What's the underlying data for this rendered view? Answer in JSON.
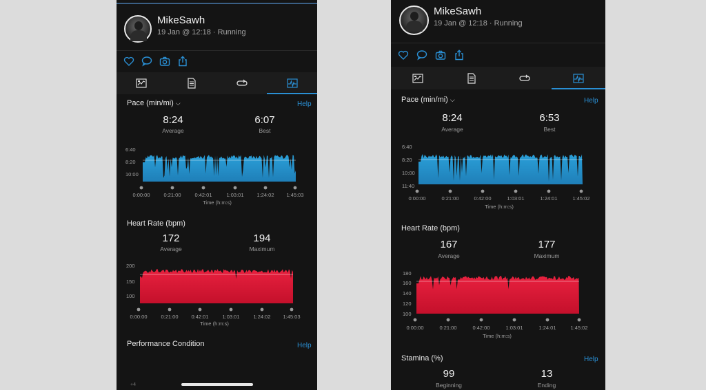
{
  "left": {
    "user": {
      "name": "MikeSawh",
      "subtitle": "19 Jan @ 12:18 · Running"
    },
    "pace": {
      "title": "Pace (min/mi)",
      "help": "Help",
      "average": "8:24",
      "average_label": "Average",
      "best": "6:07",
      "best_label": "Best",
      "y_ticks": [
        "6:40",
        "8:20",
        "10:00"
      ],
      "x_ticks": [
        "0:00:00",
        "0:21:00",
        "0:42:01",
        "1:03:01",
        "1:24:02",
        "1:45:03"
      ],
      "x_label": "Time (h:m:s)"
    },
    "heart": {
      "title": "Heart Rate (bpm)",
      "average": "172",
      "average_label": "Average",
      "max": "194",
      "max_label": "Maximum",
      "y_ticks": [
        "200",
        "150",
        "100"
      ],
      "x_ticks": [
        "0:00:00",
        "0:21:00",
        "0:42:01",
        "1:03:01",
        "1:24:02",
        "1:45:03"
      ],
      "x_label": "Time (h:m:s)"
    },
    "performance": {
      "title": "Performance Condition",
      "help": "Help",
      "y_tick": "+4"
    }
  },
  "right": {
    "user": {
      "name": "MikeSawh",
      "subtitle": "19 Jan @ 12:18 · Running"
    },
    "pace": {
      "title": "Pace (min/mi)",
      "help": "Help",
      "average": "8:24",
      "average_label": "Average",
      "best": "6:53",
      "best_label": "Best",
      "y_ticks": [
        "6:40",
        "8:20",
        "10:00",
        "11:40"
      ],
      "x_ticks": [
        "0:00:00",
        "0:21:00",
        "0:42:00",
        "1:03:01",
        "1:24:01",
        "1:45:02"
      ],
      "x_label": "Time (h:m:s)"
    },
    "heart": {
      "title": "Heart Rate (bpm)",
      "average": "167",
      "average_label": "Average",
      "max": "177",
      "max_label": "Maximum",
      "y_ticks": [
        "180",
        "160",
        "140",
        "120",
        "100"
      ],
      "x_ticks": [
        "0:00:00",
        "0:21:00",
        "0:42:00",
        "1:03:01",
        "1:24:01",
        "1:45:02"
      ],
      "x_label": "Time (h:m:s)"
    },
    "stamina": {
      "title": "Stamina (%)",
      "help": "Help",
      "beginning": "99",
      "beginning_label": "Beginning",
      "ending": "13",
      "ending_label": "Ending"
    }
  },
  "icons": {
    "actions": [
      "heart-icon",
      "comment-icon",
      "camera-icon",
      "share-icon"
    ],
    "tabs": [
      "stats-tab-icon",
      "laps-tab-icon",
      "splits-tab-icon",
      "charts-tab-icon"
    ]
  },
  "colors": {
    "pace": "#2a9fd8",
    "heart": "#e8213f",
    "accent": "#2a8fd4"
  }
}
